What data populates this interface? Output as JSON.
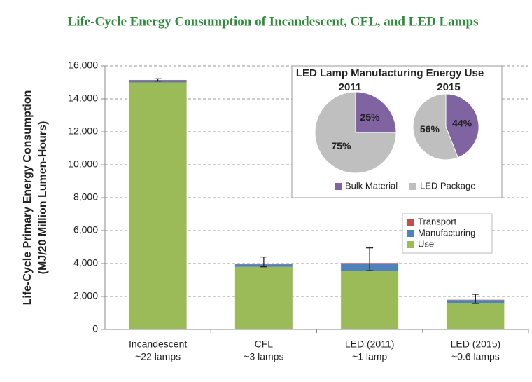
{
  "title": "Life-Cycle Energy Consumption of Incandescent, CFL, and LED Lamps",
  "chart_data": [
    {
      "type": "stacked-bar",
      "y_label": [
        "Life-Cycle Primary Energy Consumption",
        "(MJ/20 Million Lumen-Hours)"
      ],
      "categories": [
        [
          "Incandescent",
          "~22 lamps"
        ],
        [
          "CFL",
          "~3 lamps"
        ],
        [
          "LED (2011)",
          "~1 lamp"
        ],
        [
          "LED (2015)",
          "~0.6 lamps"
        ]
      ],
      "series": [
        {
          "name": "Use",
          "color": "#9bbb59",
          "values": [
            15000,
            3800,
            3550,
            1600
          ]
        },
        {
          "name": "Manufacturing",
          "color": "#4f81bd",
          "values": [
            120,
            150,
            450,
            180
          ]
        },
        {
          "name": "Transport",
          "color": "#c0504d",
          "values": [
            30,
            50,
            30,
            20
          ]
        }
      ],
      "error_range": [
        [
          15080,
          15220
        ],
        [
          3800,
          4400
        ],
        [
          3570,
          4950
        ],
        [
          1575,
          2130
        ]
      ],
      "ylim": [
        0,
        16000
      ],
      "yticks": [
        0,
        {
          "value": 2000,
          "label": "2,000"
        },
        {
          "value": 4000,
          "label": "4,000"
        },
        {
          "value": 6000,
          "label": "6,000"
        },
        {
          "value": 8000,
          "label": "8,000"
        },
        {
          "value": 10000,
          "label": "10,000"
        },
        {
          "value": 12000,
          "label": "12,000"
        },
        {
          "value": 14000,
          "label": "14,000"
        },
        {
          "value": 16000,
          "label": "16,000"
        }
      ],
      "grid": true,
      "legend": "center-right"
    },
    {
      "type": "pie",
      "title": "LED Lamp Manufacturing Energy Use",
      "categories": [
        "Bulk Material",
        "LED Package"
      ],
      "colors": [
        "#8064a2",
        "#bfbfbf"
      ],
      "pies": [
        {
          "name": "2011",
          "values": [
            25,
            75
          ],
          "value_labels": [
            "25%",
            "75%"
          ]
        },
        {
          "name": "2015",
          "values": [
            44,
            56
          ],
          "value_labels": [
            "44%",
            "56%"
          ]
        }
      ]
    }
  ]
}
